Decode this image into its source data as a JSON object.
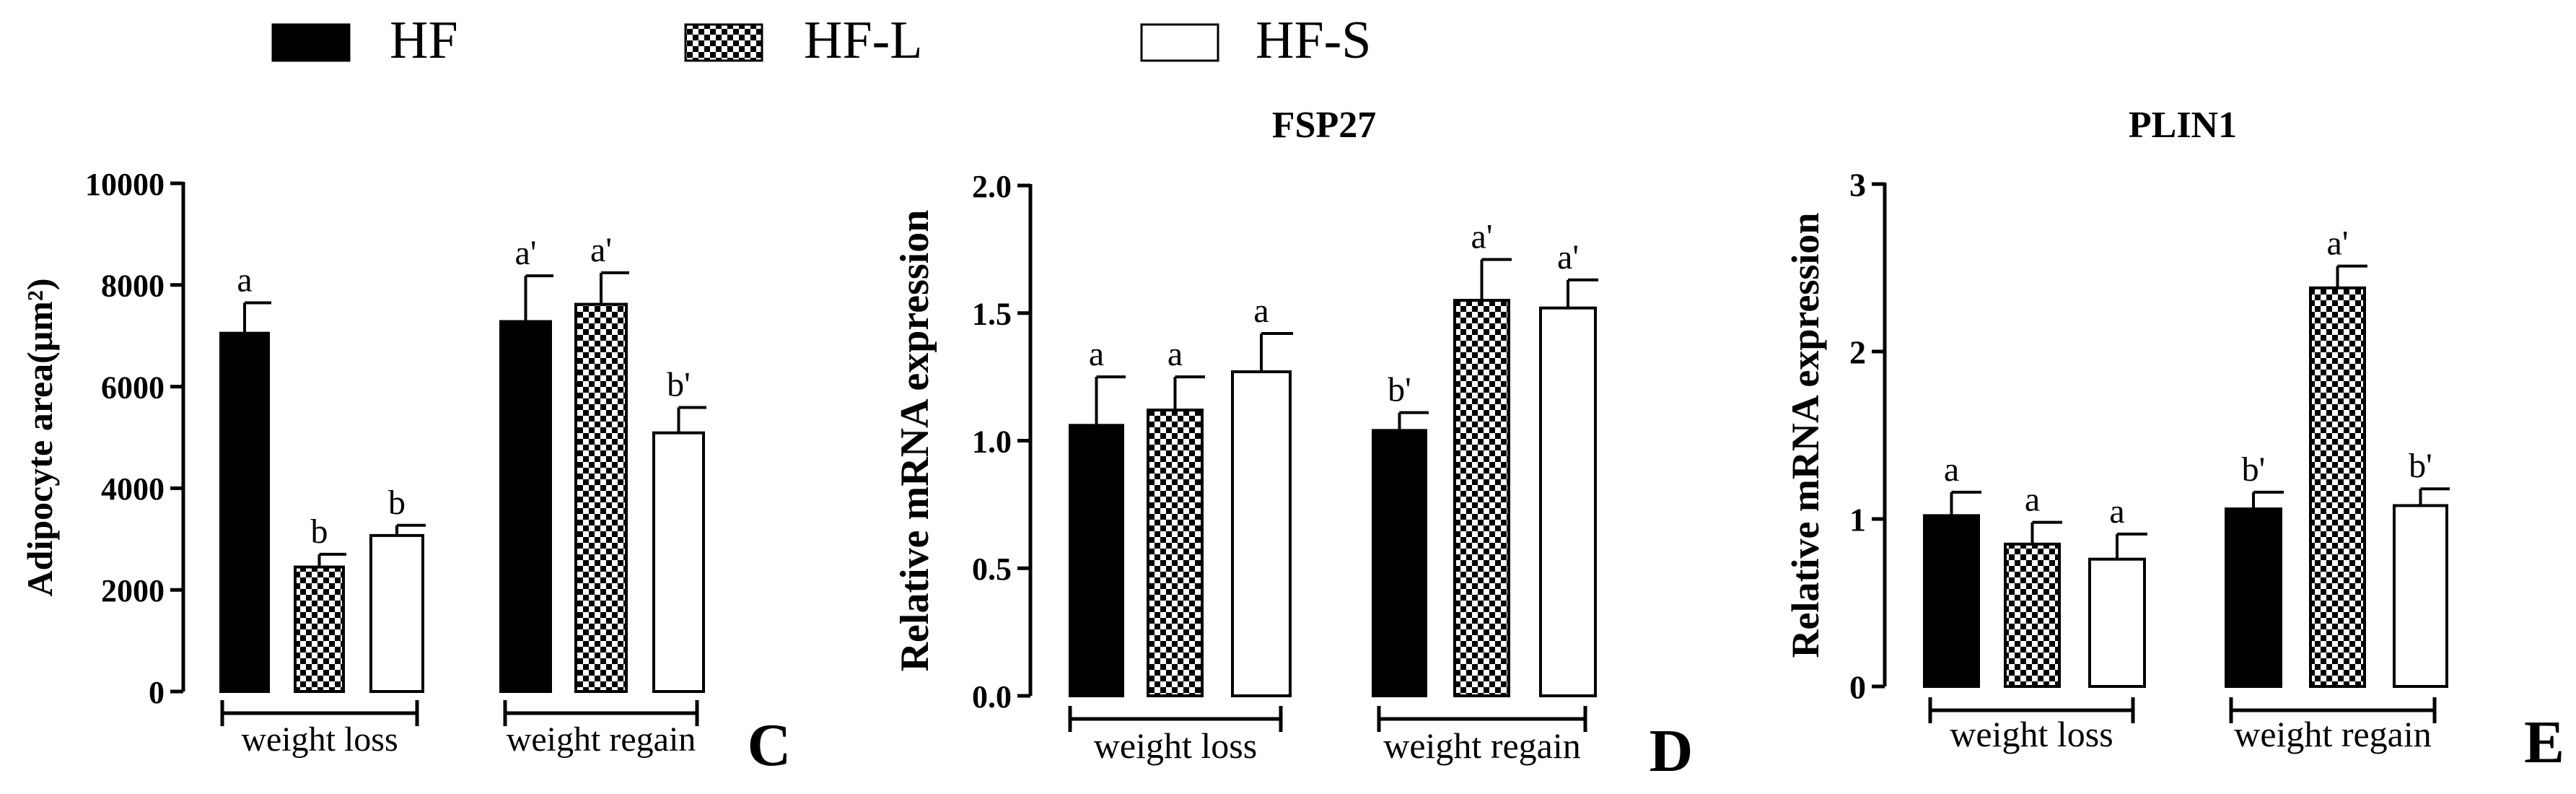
{
  "legend": {
    "items": [
      {
        "label": "HF",
        "fill": "solid"
      },
      {
        "label": "HF-L",
        "fill": "checker"
      },
      {
        "label": "HF-S",
        "fill": "white"
      }
    ]
  },
  "colors": {
    "solid": "#000000",
    "white": "#ffffff",
    "axis": "#000000"
  },
  "chart_data": [
    {
      "type": "bar",
      "panel_letter": "C",
      "title": "",
      "ylabel": "Adipocyte area(μm²)",
      "ylim": [
        0,
        10000
      ],
      "yticks": [
        "0",
        "2000",
        "4000",
        "6000",
        "8000",
        "10000"
      ],
      "yticks_values": [
        0,
        2000,
        4000,
        6000,
        8000,
        10000
      ],
      "groups": [
        "weight loss",
        "weight regain"
      ],
      "series": [
        {
          "name": "HF",
          "values": [
            7050,
            7280
          ],
          "errors": [
            600,
            900
          ],
          "letters": [
            "a",
            "a'"
          ]
        },
        {
          "name": "HF-L",
          "values": [
            2450,
            7620
          ],
          "errors": [
            250,
            620
          ],
          "letters": [
            "b",
            "a'"
          ]
        },
        {
          "name": "HF-S",
          "values": [
            3070,
            5090
          ],
          "errors": [
            200,
            500
          ],
          "letters": [
            "b",
            "b'"
          ]
        }
      ]
    },
    {
      "type": "bar",
      "panel_letter": "D",
      "title": "FSP27",
      "ylabel": "Relative mRNA expression",
      "ylim": [
        0,
        2.0
      ],
      "yticks": [
        "0.0",
        "0.5",
        "1.0",
        "1.5",
        "2.0"
      ],
      "yticks_values": [
        0,
        0.5,
        1.0,
        1.5,
        2.0
      ],
      "groups": [
        "weight loss",
        "weight regain"
      ],
      "series": [
        {
          "name": "HF",
          "values": [
            1.06,
            1.04
          ],
          "errors": [
            0.19,
            0.07
          ],
          "letters": [
            "a",
            "b'"
          ]
        },
        {
          "name": "HF-L",
          "values": [
            1.12,
            1.55
          ],
          "errors": [
            0.13,
            0.16
          ],
          "letters": [
            "a",
            "a'"
          ]
        },
        {
          "name": "HF-S",
          "values": [
            1.27,
            1.52
          ],
          "errors": [
            0.15,
            0.11
          ],
          "letters": [
            "a",
            "a'"
          ]
        }
      ]
    },
    {
      "type": "bar",
      "panel_letter": "E",
      "title": "PLIN1",
      "ylabel": "Relative mRNA expression",
      "ylim": [
        0,
        3
      ],
      "yticks": [
        "0",
        "1",
        "2",
        "3"
      ],
      "yticks_values": [
        0,
        1,
        2,
        3
      ],
      "groups": [
        "weight loss",
        "weight regain"
      ],
      "series": [
        {
          "name": "HF",
          "values": [
            1.02,
            1.06
          ],
          "errors": [
            0.14,
            0.1
          ],
          "letters": [
            "a",
            "b'"
          ]
        },
        {
          "name": "HF-L",
          "values": [
            0.85,
            2.38
          ],
          "errors": [
            0.13,
            0.13
          ],
          "letters": [
            "a",
            "a'"
          ]
        },
        {
          "name": "HF-S",
          "values": [
            0.76,
            1.08
          ],
          "errors": [
            0.15,
            0.1
          ],
          "letters": [
            "a",
            "b'"
          ]
        }
      ]
    }
  ]
}
